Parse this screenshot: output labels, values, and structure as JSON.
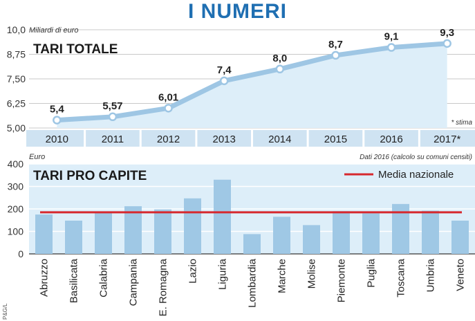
{
  "header": {
    "title": "I NUMERI"
  },
  "credit": "P&G/L",
  "chart_data": [
    {
      "type": "line",
      "title": "TARI TOTALE",
      "ylabel": "Miliardi di euro",
      "note": "* stima",
      "categories": [
        "2010",
        "2011",
        "2012",
        "2013",
        "2014",
        "2015",
        "2016",
        "2017*"
      ],
      "values": [
        5.4,
        5.57,
        6.01,
        7.4,
        8.0,
        8.7,
        9.1,
        9.3
      ],
      "data_labels": [
        "5,4",
        "5,57",
        "6,01",
        "7,4",
        "8,0",
        "8,7",
        "9,1",
        "9,3"
      ],
      "ylim": [
        5.0,
        10.0
      ],
      "yticks": [
        5.0,
        6.25,
        7.5,
        8.75,
        10.0
      ],
      "ytick_labels": [
        "5,00",
        "6,25",
        "7,50",
        "8,75",
        "10,0"
      ],
      "colors": {
        "line": "#9ec6e4",
        "fill": "#ddeef9",
        "marker_fill": "#ffffff",
        "axis_band": "#cfe3f2"
      }
    },
    {
      "type": "bar",
      "title": "TARI PRO CAPITE",
      "ylabel": "Euro",
      "note": "Dati 2016 (calcolo su comuni censiti)",
      "categories": [
        "Abruzzo",
        "Basilicata",
        "Calabria",
        "Campania",
        "E. Romagna",
        "Lazio",
        "Liguria",
        "Lombardia",
        "Marche",
        "Molise",
        "Piemonte",
        "Puglia",
        "Toscana",
        "Umbria",
        "Veneto"
      ],
      "values": [
        175,
        148,
        182,
        212,
        198,
        247,
        330,
        88,
        165,
        128,
        190,
        180,
        222,
        192,
        148
      ],
      "reference_line": {
        "label": "Media nazionale",
        "value": 185
      },
      "ylim": [
        0,
        400
      ],
      "yticks": [
        0,
        100,
        200,
        300,
        400
      ],
      "ytick_labels": [
        "0",
        "100",
        "200",
        "300",
        "400"
      ],
      "colors": {
        "bar": "#9fc8e5",
        "reference": "#d6282e",
        "plot_bg": "#ddeef9"
      }
    }
  ]
}
